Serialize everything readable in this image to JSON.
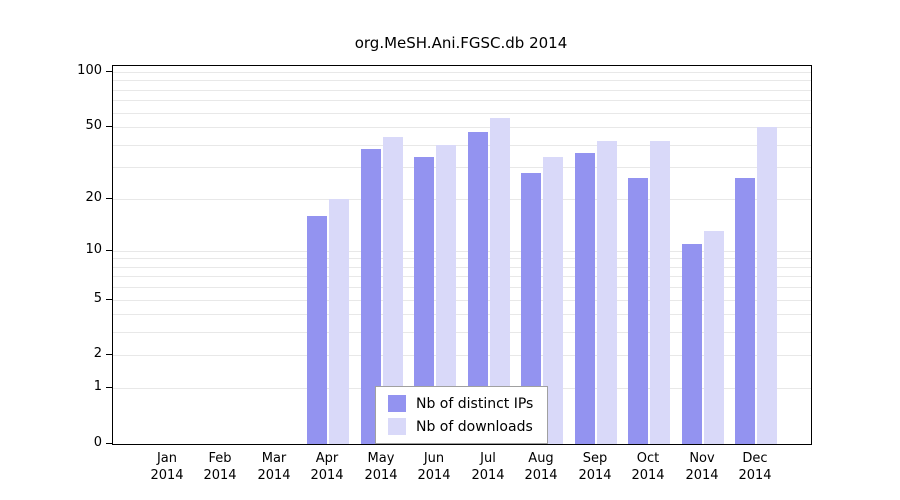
{
  "title": "org.MeSH.Ani.FGSC.db 2014",
  "chart_data": {
    "type": "bar",
    "title": "org.MeSH.Ani.FGSC.db 2014",
    "categories": [
      "Jan 2014",
      "Feb 2014",
      "Mar 2014",
      "Apr 2014",
      "May 2014",
      "Jun 2014",
      "Jul 2014",
      "Aug 2014",
      "Sep 2014",
      "Oct 2014",
      "Nov 2014",
      "Dec 2014"
    ],
    "category_months": [
      "Jan",
      "Feb",
      "Mar",
      "Apr",
      "May",
      "Jun",
      "Jul",
      "Aug",
      "Sep",
      "Oct",
      "Nov",
      "Dec"
    ],
    "category_year": "2014",
    "series": [
      {
        "name": "Nb of distinct IPs",
        "color": "#9393f0",
        "values": [
          0,
          0,
          0,
          16,
          38,
          34,
          47,
          28,
          36,
          26,
          11,
          26
        ]
      },
      {
        "name": "Nb of downloads",
        "color": "#d9d9f9",
        "values": [
          0,
          0,
          0,
          20,
          44,
          40,
          56,
          34,
          42,
          42,
          13,
          50
        ]
      }
    ],
    "y_axis": {
      "scale": "log1p",
      "ticks": [
        0,
        1,
        2,
        5,
        10,
        20,
        50,
        100
      ],
      "minor_gridlines": [
        1,
        2,
        3,
        4,
        5,
        6,
        7,
        8,
        9,
        10,
        20,
        30,
        40,
        50,
        60,
        70,
        80,
        90,
        100
      ],
      "min": 0,
      "max": 100
    },
    "xlabel": "",
    "ylabel": "",
    "grid": true,
    "legend_position": "bottom-center",
    "colors": {
      "grid": "#e8e8e8",
      "axis": "#000000",
      "background": "#ffffff"
    }
  }
}
